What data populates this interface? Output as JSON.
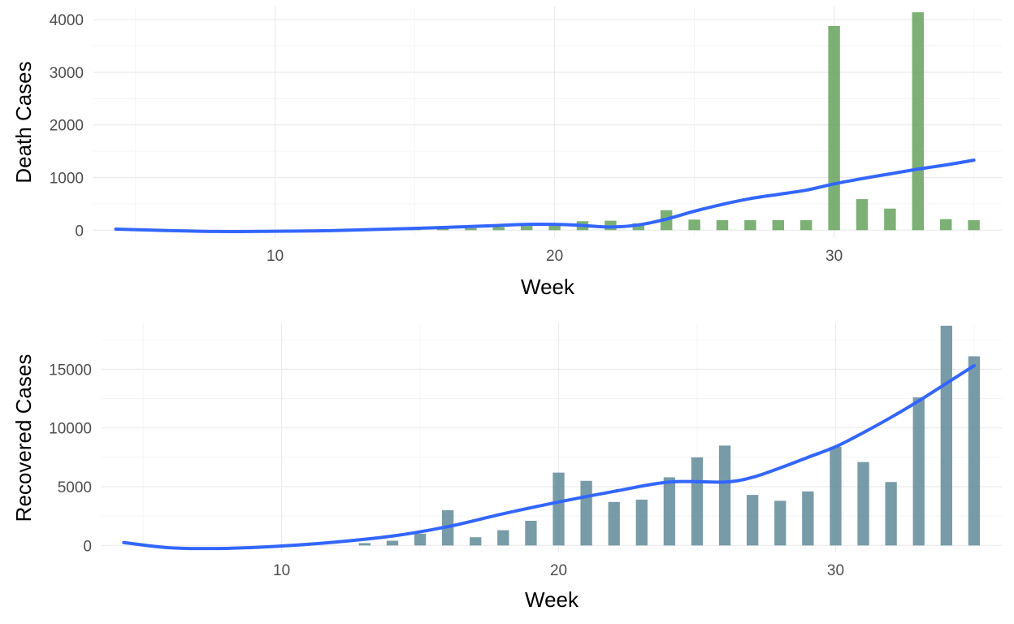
{
  "chart_data": [
    {
      "type": "bar",
      "xlabel": "Week",
      "ylabel": "Death Cases",
      "xlim": [
        3.5,
        36
      ],
      "ylim": [
        -150,
        4250
      ],
      "x_major_ticks": [
        10,
        20,
        30
      ],
      "x_minor_ticks": [
        5,
        15,
        25,
        35
      ],
      "y_major_ticks": [
        0,
        1000,
        2000,
        3000,
        4000
      ],
      "y_minor_ticks": [
        500,
        1500,
        2500,
        3500
      ],
      "grid": true,
      "bar_color": "#5f9f57",
      "smooth_color": "#3366ff",
      "x": [
        5,
        6,
        7,
        8,
        9,
        10,
        11,
        12,
        13,
        14,
        15,
        16,
        17,
        18,
        19,
        20,
        21,
        22,
        23,
        24,
        25,
        26,
        27,
        28,
        29,
        30,
        31,
        32,
        33,
        34,
        35
      ],
      "values": [
        0,
        0,
        0,
        0,
        0,
        0,
        0,
        0,
        5,
        10,
        20,
        30,
        40,
        60,
        80,
        100,
        170,
        180,
        130,
        380,
        200,
        190,
        190,
        190,
        190,
        3880,
        590,
        410,
        4140,
        210,
        190
      ],
      "smooth_x": [
        4.3,
        6,
        8,
        10,
        12,
        14,
        16,
        18,
        19,
        20,
        21,
        22,
        23,
        24,
        25,
        26,
        27,
        28,
        29,
        30,
        31,
        32,
        33,
        34,
        35
      ],
      "smooth_y": [
        20,
        -5,
        -25,
        -20,
        -10,
        20,
        50,
        90,
        110,
        110,
        90,
        60,
        100,
        210,
        360,
        490,
        600,
        680,
        760,
        880,
        980,
        1070,
        1160,
        1240,
        1330
      ]
    },
    {
      "type": "bar",
      "xlabel": "Week",
      "ylabel": "Recovered Cases",
      "xlim": [
        3.5,
        36
      ],
      "ylim": [
        -600,
        18900
      ],
      "x_major_ticks": [
        10,
        20,
        30
      ],
      "x_minor_ticks": [
        5,
        15,
        25,
        35
      ],
      "y_major_ticks": [
        0,
        5000,
        10000,
        15000
      ],
      "y_minor_ticks": [
        2500,
        7500,
        12500,
        17500
      ],
      "grid": true,
      "bar_color": "#5a8595",
      "smooth_color": "#3366ff",
      "x": [
        5,
        6,
        7,
        8,
        9,
        10,
        11,
        12,
        13,
        14,
        15,
        16,
        17,
        18,
        19,
        20,
        21,
        22,
        23,
        24,
        25,
        26,
        27,
        28,
        29,
        30,
        31,
        32,
        33,
        34,
        35
      ],
      "values": [
        0,
        0,
        0,
        0,
        0,
        0,
        0,
        0,
        200,
        400,
        1000,
        3000,
        700,
        1300,
        2100,
        6200,
        5500,
        3700,
        3900,
        5800,
        7500,
        8500,
        4300,
        3800,
        4600,
        8400,
        7100,
        5400,
        12600,
        18700,
        16100
      ],
      "smooth_x": [
        4.3,
        6,
        8,
        10,
        12,
        14,
        16,
        18,
        20,
        22,
        24,
        26,
        27,
        28,
        29,
        30,
        31,
        32,
        33,
        34,
        35
      ],
      "smooth_y": [
        250,
        -200,
        -250,
        -50,
        300,
        800,
        1600,
        2700,
        3700,
        4600,
        5400,
        5400,
        5800,
        6600,
        7500,
        8400,
        9600,
        10900,
        12300,
        13800,
        15300
      ]
    }
  ]
}
